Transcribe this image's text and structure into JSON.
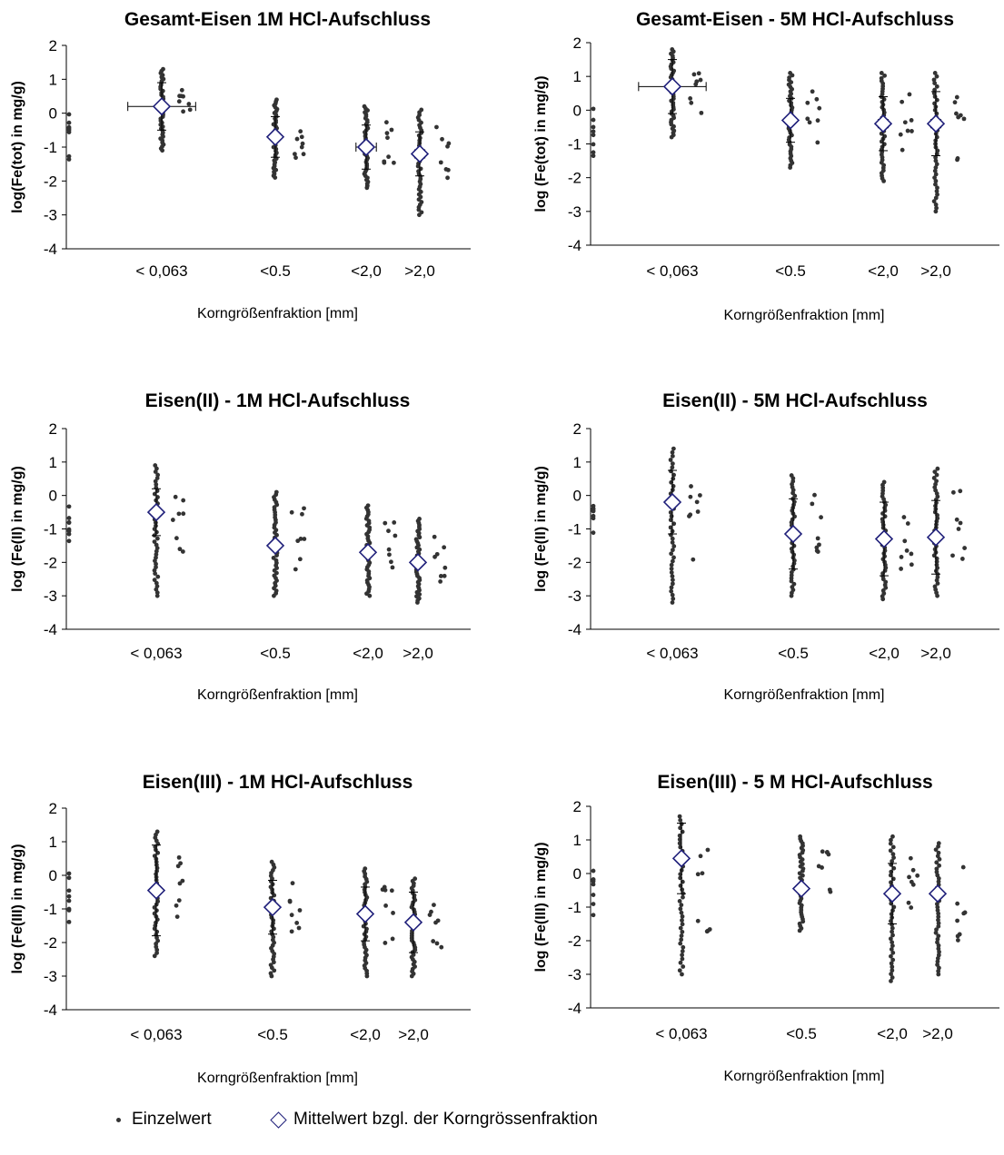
{
  "chart_data": [
    {
      "type": "scatter",
      "title": "Gesamt-Eisen 1M HCl-Aufschluss",
      "xlabel": "Korngrößenfraktion [mm]",
      "ylabel": "log(Fe(tot) in mg/g)",
      "categories": [
        "< 0,063",
        "<0.5",
        "<2,0",
        ">2,0"
      ],
      "ylim": [
        -4,
        2
      ],
      "yticks": [
        2,
        1,
        0,
        -1,
        -2,
        -3,
        -4
      ],
      "grid": false,
      "series": [
        {
          "name": "Einzelwert",
          "groups": [
            {
              "category": "< 0,063",
              "min": -1.1,
              "max": 1.3
            },
            {
              "category": "<0.5",
              "min": -1.9,
              "max": 0.4
            },
            {
              "category": "<2,0",
              "min": -2.2,
              "max": 0.2
            },
            {
              "category": ">2,0",
              "min": -3.0,
              "max": 0.1
            }
          ]
        },
        {
          "name": "Mittelwert bzgl. der Korngrössenfraktion",
          "values": [
            0.2,
            -0.7,
            -1.0,
            -1.2
          ],
          "error_y": [
            0.7,
            0.6,
            0.65,
            0.65
          ],
          "error_x": [
            1.0,
            0,
            0.3,
            0.15
          ]
        }
      ]
    },
    {
      "type": "scatter",
      "title": "Gesamt-Eisen - 5M HCl-Aufschluss",
      "xlabel": "Korngrößenfraktion [mm]",
      "ylabel": "log (Fe(tot) in mg/g)",
      "categories": [
        "< 0,063",
        "<0.5",
        "<2,0",
        ">2,0"
      ],
      "ylim": [
        -4,
        2
      ],
      "yticks": [
        2,
        1,
        0,
        -1,
        -2,
        -3,
        -4
      ],
      "grid": false,
      "series": [
        {
          "name": "Einzelwert",
          "groups": [
            {
              "category": "< 0,063",
              "min": -0.8,
              "max": 1.8
            },
            {
              "category": "<0.5",
              "min": -1.7,
              "max": 1.1
            },
            {
              "category": "<2,0",
              "min": -2.1,
              "max": 1.1
            },
            {
              "category": ">2,0",
              "min": -3.0,
              "max": 1.1
            }
          ]
        },
        {
          "name": "Mittelwert bzgl. der Korngrössenfraktion",
          "values": [
            0.7,
            -0.3,
            -0.4,
            -0.4
          ],
          "error_y": [
            0.8,
            0.65,
            0.8,
            0.95
          ],
          "error_x": [
            1.0,
            0,
            0.15,
            0.15
          ]
        }
      ]
    },
    {
      "type": "scatter",
      "title": "Eisen(II) - 1M HCl-Aufschluss",
      "xlabel": "Korngrößenfraktion [mm]",
      "ylabel": "log (Fe(II) in mg/g)",
      "categories": [
        "< 0,063",
        "<0.5",
        "<2,0",
        ">2,0"
      ],
      "ylim": [
        -4,
        2
      ],
      "yticks": [
        2,
        1,
        0,
        -1,
        -2,
        -3,
        -4
      ],
      "grid": false,
      "series": [
        {
          "name": "Einzelwert",
          "groups": [
            {
              "category": "< 0,063",
              "min": -3.0,
              "max": 0.9
            },
            {
              "category": "<0.5",
              "min": -3.0,
              "max": 0.1
            },
            {
              "category": "<2,0",
              "min": -3.0,
              "max": -0.3
            },
            {
              "category": ">2,0",
              "min": -3.2,
              "max": -0.7
            }
          ]
        },
        {
          "name": "Mittelwert bzgl. der Korngrössenfraktion",
          "values": [
            -0.5,
            -1.5,
            -1.7,
            -2.0
          ],
          "error_y": [
            0.7,
            0,
            0,
            0
          ],
          "error_x": [
            0,
            0,
            0,
            0
          ]
        }
      ]
    },
    {
      "type": "scatter",
      "title": "Eisen(II) - 5M HCl-Aufschluss",
      "xlabel": "Korngrößenfraktion [mm]",
      "ylabel": "log (Fe(II) in mg/g)",
      "categories": [
        "< 0,063",
        "<0.5",
        "<2,0",
        ">2,0"
      ],
      "ylim": [
        -4,
        2
      ],
      "yticks": [
        2,
        1,
        0,
        -1,
        -2,
        -3,
        -4
      ],
      "grid": false,
      "series": [
        {
          "name": "Einzelwert",
          "groups": [
            {
              "category": "< 0,063",
              "min": -3.2,
              "max": 1.4
            },
            {
              "category": "<0.5",
              "min": -3.0,
              "max": 0.6
            },
            {
              "category": "<2,0",
              "min": -3.1,
              "max": 0.4
            },
            {
              "category": ">2,0",
              "min": -3.0,
              "max": 0.8
            }
          ]
        },
        {
          "name": "Mittelwert bzgl. der Korngrössenfraktion",
          "values": [
            -0.2,
            -1.15,
            -1.3,
            -1.25
          ],
          "error_y": [
            0.95,
            1.05,
            1.1,
            1.1
          ],
          "error_x": [
            0,
            0,
            0,
            0
          ]
        }
      ]
    },
    {
      "type": "scatter",
      "title": "Eisen(III) - 1M HCl-Aufschluss",
      "xlabel": "Korngrößenfraktion [mm]",
      "ylabel": "log (Fe(III) in mg/g)",
      "categories": [
        "< 0,063",
        "<0.5",
        "<2,0",
        ">2,0"
      ],
      "ylim": [
        -4,
        2
      ],
      "yticks": [
        2,
        1,
        0,
        -1,
        -2,
        -3,
        -4
      ],
      "grid": false,
      "series": [
        {
          "name": "Einzelwert",
          "groups": [
            {
              "category": "< 0,063",
              "min": -2.4,
              "max": 1.3
            },
            {
              "category": "<0.5",
              "min": -3.0,
              "max": 0.4
            },
            {
              "category": "<2,0",
              "min": -3.0,
              "max": 0.2
            },
            {
              "category": ">2,0",
              "min": -3.0,
              "max": -0.1
            }
          ]
        },
        {
          "name": "Mittelwert bzgl. der Korngrössenfraktion",
          "values": [
            -0.45,
            -0.95,
            -1.15,
            -1.4
          ],
          "error_y": [
            1.35,
            0.8,
            0.8,
            0.9
          ],
          "error_x": [
            0,
            0,
            0,
            0
          ]
        }
      ]
    },
    {
      "type": "scatter",
      "title": "Eisen(III) - 5 M HCl-Aufschluss",
      "xlabel": "Korngrößenfraktion [mm]",
      "ylabel": "log (Fe(III) in mg/g)",
      "categories": [
        "< 0,063",
        "<0.5",
        "<2,0",
        ">2,0"
      ],
      "ylim": [
        -4,
        2
      ],
      "yticks": [
        2,
        1,
        0,
        -1,
        -2,
        -3,
        -4
      ],
      "grid": false,
      "series": [
        {
          "name": "Einzelwert",
          "groups": [
            {
              "category": "< 0,063",
              "min": -3.0,
              "max": 1.7
            },
            {
              "category": "<0.5",
              "min": -1.7,
              "max": 1.1
            },
            {
              "category": "<2,0",
              "min": -3.2,
              "max": 1.1
            },
            {
              "category": ">2,0",
              "min": -3.0,
              "max": 0.9
            }
          ]
        },
        {
          "name": "Mittelwert bzgl. der Korngrössenfraktion",
          "values": [
            0.45,
            -0.45,
            -0.6,
            -0.6
          ],
          "error_y": [
            1.05,
            0,
            0.9,
            0
          ],
          "error_x": [
            0,
            0,
            0,
            0
          ]
        }
      ]
    }
  ],
  "legend": {
    "single_value_label": "Einzelwert",
    "mean_label": "Mittelwert bzgl. der Korngrössenfraktion",
    "position": "bottom"
  },
  "colors": {
    "points": "#333333",
    "mean_marker": "#1f1f7a",
    "axis": "#000000"
  }
}
